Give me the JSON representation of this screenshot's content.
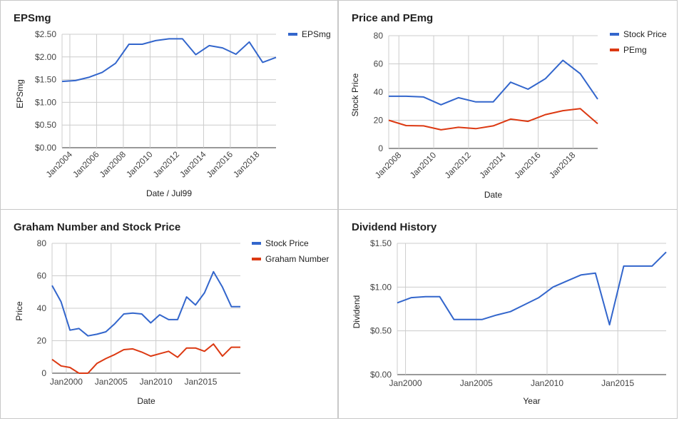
{
  "chart_data": [
    {
      "type": "line",
      "title": "EPSmg",
      "xlabel": "Date / Jul99",
      "ylabel": "EPSmg",
      "x_type": "date",
      "x_ticks": [
        "Jan2004",
        "Jan2006",
        "Jan2008",
        "Jan2010",
        "Jan2012",
        "Jan2014",
        "Jan2016",
        "Jan2018"
      ],
      "y_ticks": [
        "$0.00",
        "$0.50",
        "$1.00",
        "$1.50",
        "$2.00",
        "$2.50"
      ],
      "xlim": [
        "2003-06",
        "2019-06"
      ],
      "ylim": [
        0,
        2.5
      ],
      "legend_position": "right",
      "grid": true,
      "series": [
        {
          "name": "EPSmg",
          "color": "#3366cc",
          "x": [
            "2003-06",
            "2004-06",
            "2005-06",
            "2006-06",
            "2007-06",
            "2008-06",
            "2009-06",
            "2010-06",
            "2011-06",
            "2012-06",
            "2013-06",
            "2014-06",
            "2015-06",
            "2016-06",
            "2017-06",
            "2018-06",
            "2019-06"
          ],
          "y": [
            1.46,
            1.48,
            1.55,
            1.66,
            1.86,
            2.28,
            2.28,
            2.36,
            2.4,
            2.4,
            2.05,
            2.25,
            2.2,
            2.06,
            2.33,
            1.88,
            1.99
          ]
        }
      ]
    },
    {
      "type": "line",
      "title": "Price and PEmg",
      "xlabel": "Date",
      "ylabel": "Stock Price",
      "x_type": "date",
      "x_ticks": [
        "Jan2008",
        "Jan2010",
        "Jan2012",
        "Jan2014",
        "Jan2016",
        "Jan2018"
      ],
      "y_ticks": [
        "0",
        "20",
        "40",
        "60",
        "80"
      ],
      "xlim": [
        "2007-06",
        "2019-06"
      ],
      "ylim": [
        0,
        80
      ],
      "legend_position": "right",
      "grid": true,
      "series": [
        {
          "name": "Stock Price",
          "color": "#3366cc",
          "x": [
            "2007-06",
            "2008-06",
            "2009-06",
            "2010-06",
            "2011-06",
            "2012-06",
            "2013-06",
            "2014-06",
            "2015-06",
            "2016-06",
            "2017-06",
            "2018-06",
            "2019-06"
          ],
          "y": [
            37,
            37,
            36.5,
            31,
            36,
            33,
            33,
            47,
            42,
            49.5,
            62.5,
            53,
            35
          ]
        },
        {
          "name": "PEmg",
          "color": "#dc3912",
          "x": [
            "2007-06",
            "2008-06",
            "2009-06",
            "2010-06",
            "2011-06",
            "2012-06",
            "2013-06",
            "2014-06",
            "2015-06",
            "2016-06",
            "2017-06",
            "2018-06",
            "2019-06"
          ],
          "y": [
            20,
            16.2,
            16,
            13.2,
            15,
            14,
            16,
            20.8,
            19.2,
            24,
            26.8,
            28.2,
            17.5
          ]
        }
      ]
    },
    {
      "type": "line",
      "title": "Graham Number and Stock Price",
      "xlabel": "Date",
      "ylabel": "Price",
      "x_type": "date",
      "x_ticks": [
        "Jan2000",
        "Jan2005",
        "Jan2010",
        "Jan2015"
      ],
      "y_ticks": [
        "0",
        "20",
        "40",
        "60",
        "80"
      ],
      "xlim": [
        "1998-06",
        "2019-06"
      ],
      "ylim": [
        0,
        80
      ],
      "legend_position": "right",
      "grid": true,
      "series": [
        {
          "name": "Stock Price",
          "color": "#3366cc",
          "x": [
            "1998-06",
            "1999-06",
            "2000-06",
            "2001-06",
            "2002-06",
            "2003-06",
            "2004-06",
            "2005-06",
            "2006-06",
            "2007-06",
            "2008-06",
            "2009-06",
            "2010-06",
            "2011-06",
            "2012-06",
            "2013-06",
            "2014-06",
            "2015-06",
            "2016-06",
            "2017-06",
            "2018-06",
            "2019-06"
          ],
          "y": [
            54,
            44,
            26.5,
            27.5,
            23,
            24,
            25.5,
            30.5,
            36.5,
            37,
            36.5,
            31,
            36,
            33,
            33,
            47,
            42,
            49.5,
            62.5,
            53,
            41,
            41
          ]
        },
        {
          "name": "Graham Number",
          "color": "#dc3912",
          "x": [
            "1998-06",
            "1999-06",
            "2000-06",
            "2001-06",
            "2002-06",
            "2003-06",
            "2004-06",
            "2005-06",
            "2006-06",
            "2007-06",
            "2008-06",
            "2009-06",
            "2010-06",
            "2011-06",
            "2012-06",
            "2013-06",
            "2014-06",
            "2015-06",
            "2016-06",
            "2017-06",
            "2018-06",
            "2019-06"
          ],
          "y": [
            8.5,
            4.5,
            3.5,
            0,
            0,
            6,
            9,
            11.5,
            14.5,
            15,
            13,
            10.5,
            12,
            13.5,
            9.8,
            15.5,
            15.5,
            13.5,
            18,
            10.5,
            16,
            16
          ]
        }
      ]
    },
    {
      "type": "line",
      "title": "Dividend History",
      "xlabel": "Year",
      "ylabel": "Dividend",
      "x_type": "date",
      "x_ticks": [
        "Jan2000",
        "Jan2005",
        "Jan2010",
        "Jan2015"
      ],
      "y_ticks": [
        "$0.00",
        "$0.50",
        "$1.00",
        "$1.50"
      ],
      "xlim": [
        "1999-06",
        "2018-06"
      ],
      "ylim": [
        0,
        1.5
      ],
      "legend_position": "none",
      "grid": true,
      "series": [
        {
          "name": "",
          "color": "#3366cc",
          "x": [
            "1999-06",
            "2000-06",
            "2001-06",
            "2002-06",
            "2003-06",
            "2004-06",
            "2005-06",
            "2006-06",
            "2007-06",
            "2008-06",
            "2009-06",
            "2010-06",
            "2011-06",
            "2012-06",
            "2013-06",
            "2014-06",
            "2015-06",
            "2016-06",
            "2017-06",
            "2018-06"
          ],
          "y": [
            0.82,
            0.88,
            0.89,
            0.89,
            0.63,
            0.63,
            0.63,
            0.68,
            0.72,
            0.8,
            0.88,
            1.0,
            1.07,
            1.14,
            1.16,
            0.57,
            1.24,
            1.24,
            1.24,
            1.4
          ]
        }
      ]
    }
  ]
}
